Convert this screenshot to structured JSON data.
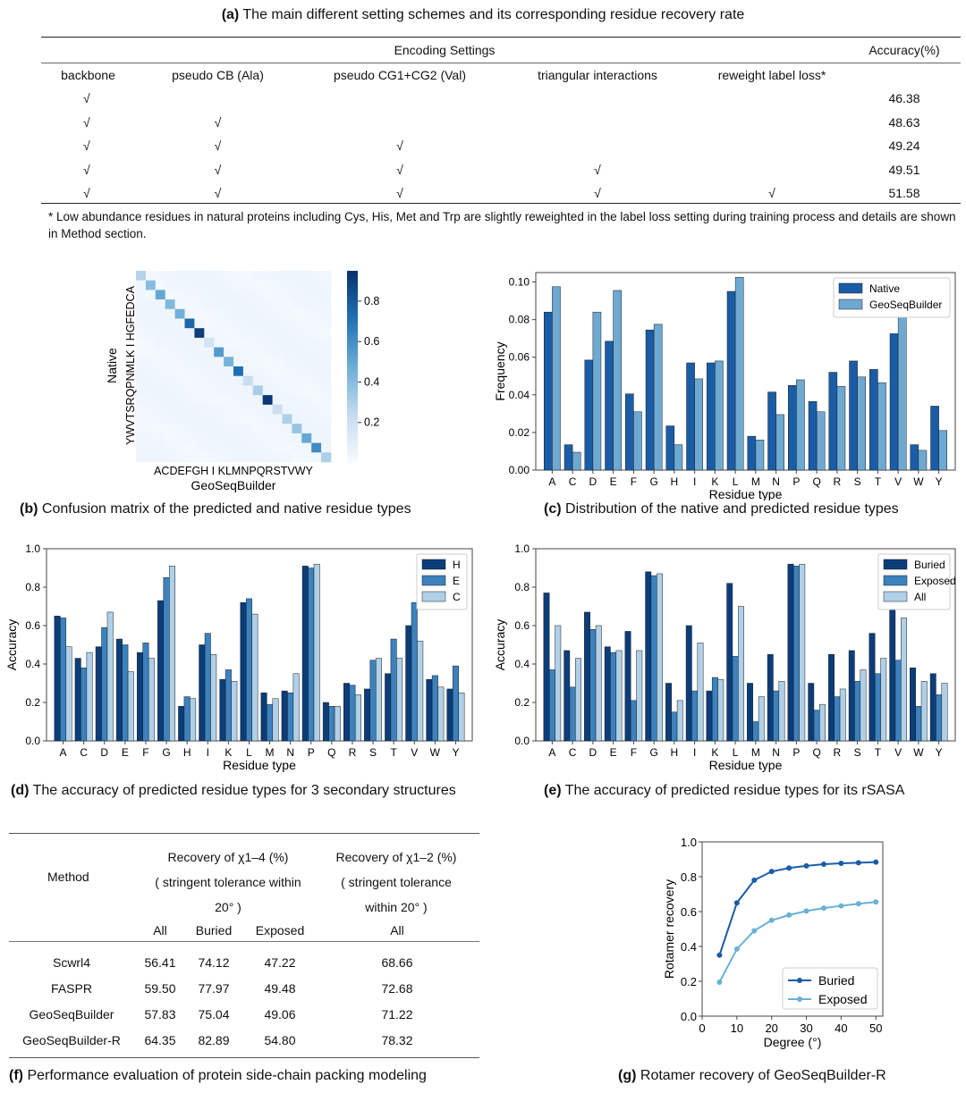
{
  "panel_a": {
    "caption_letter": "(a)",
    "caption_text": "The main different setting schemes and its corresponding residue recovery rate",
    "group_header": "Encoding Settings",
    "acc_header": "Accuracy(%)",
    "columns": [
      "backbone",
      "pseudo CB (Ala)",
      "pseudo CG1+CG2 (Val)",
      "triangular interactions",
      "reweight label loss*"
    ],
    "check": "√",
    "rows": [
      {
        "marks": [
          1,
          0,
          0,
          0,
          0
        ],
        "acc": "46.38"
      },
      {
        "marks": [
          1,
          1,
          0,
          0,
          0
        ],
        "acc": "48.63"
      },
      {
        "marks": [
          1,
          1,
          1,
          0,
          0
        ],
        "acc": "49.24"
      },
      {
        "marks": [
          1,
          1,
          1,
          1,
          0
        ],
        "acc": "49.51"
      },
      {
        "marks": [
          1,
          1,
          1,
          1,
          1
        ],
        "acc": "51.58"
      }
    ],
    "footnote": "* Low abundance residues in natural proteins including Cys, His, Met and Trp are slightly reweighted in the label loss setting during training process and details are shown in Method section."
  },
  "panel_b": {
    "caption_letter": "(b)",
    "caption_text": "Confusion matrix of the predicted and native residue types",
    "ylabel": "Native",
    "xlabel": "GeoSeqBuilder",
    "row_tick_text": "YWVTSRQPNMLK I HGFEDCA",
    "col_tick_text": "ACDEFGH I KLMNPQRSTVWY",
    "colorbar_ticks": [
      "0.2",
      "0.4",
      "0.6",
      "0.8"
    ],
    "cmap_low": "#f7fbff",
    "cmap_high": "#08306b"
  },
  "chart_data": [
    {
      "type": "heatmap",
      "id": "confusion",
      "rows": [
        "A",
        "C",
        "D",
        "E",
        "F",
        "G",
        "H",
        "I",
        "K",
        "L",
        "M",
        "N",
        "P",
        "Q",
        "R",
        "S",
        "T",
        "V",
        "W",
        "Y"
      ],
      "cols": [
        "A",
        "C",
        "D",
        "E",
        "F",
        "G",
        "H",
        "I",
        "K",
        "L",
        "M",
        "N",
        "P",
        "Q",
        "R",
        "S",
        "T",
        "V",
        "W",
        "Y"
      ],
      "diagonal": [
        0.28,
        0.4,
        0.5,
        0.42,
        0.46,
        0.75,
        0.9,
        0.18,
        0.55,
        0.45,
        0.72,
        0.22,
        0.31,
        0.92,
        0.21,
        0.3,
        0.36,
        0.5,
        0.61,
        0.3
      ],
      "zlim": [
        0,
        0.95
      ]
    },
    {
      "type": "bar",
      "id": "distribution",
      "categories": [
        "A",
        "C",
        "D",
        "E",
        "F",
        "G",
        "H",
        "I",
        "K",
        "L",
        "M",
        "N",
        "P",
        "Q",
        "R",
        "S",
        "T",
        "V",
        "W",
        "Y"
      ],
      "series": [
        {
          "name": "Native",
          "color": "#1a5da6",
          "values": [
            0.084,
            0.0135,
            0.0585,
            0.0685,
            0.0405,
            0.0745,
            0.0235,
            0.057,
            0.057,
            0.095,
            0.018,
            0.0415,
            0.045,
            0.0365,
            0.052,
            0.058,
            0.0535,
            0.0725,
            0.0135,
            0.034
          ]
        },
        {
          "name": "GeoSeqBuilder",
          "color": "#6ea9d2",
          "values": [
            0.0975,
            0.0095,
            0.084,
            0.0955,
            0.031,
            0.0775,
            0.0135,
            0.0485,
            0.058,
            0.1025,
            0.016,
            0.0295,
            0.048,
            0.031,
            0.0445,
            0.0495,
            0.0465,
            0.0815,
            0.0105,
            0.021
          ]
        }
      ],
      "xlabel": "Residue type",
      "ylabel": "Frequency",
      "ylim": [
        0,
        0.105
      ],
      "yticks": [
        "0.00",
        "0.02",
        "0.04",
        "0.06",
        "0.08",
        "0.10"
      ],
      "legend": "top-right"
    },
    {
      "type": "bar",
      "id": "secondary",
      "categories": [
        "A",
        "C",
        "D",
        "E",
        "F",
        "G",
        "H",
        "I",
        "K",
        "L",
        "M",
        "N",
        "P",
        "Q",
        "R",
        "S",
        "T",
        "V",
        "W",
        "Y"
      ],
      "series": [
        {
          "name": "H",
          "color": "#0b3d7a",
          "values": [
            0.65,
            0.43,
            0.49,
            0.53,
            0.46,
            0.73,
            0.18,
            0.5,
            0.32,
            0.72,
            0.25,
            0.26,
            0.91,
            0.2,
            0.3,
            0.27,
            0.35,
            0.6,
            0.32,
            0.27
          ]
        },
        {
          "name": "E",
          "color": "#3b82bf",
          "values": [
            0.64,
            0.38,
            0.59,
            0.5,
            0.51,
            0.85,
            0.23,
            0.56,
            0.37,
            0.74,
            0.19,
            0.25,
            0.9,
            0.18,
            0.29,
            0.42,
            0.53,
            0.72,
            0.34,
            0.39
          ]
        },
        {
          "name": "C",
          "color": "#b0d0e8",
          "values": [
            0.49,
            0.46,
            0.67,
            0.36,
            0.43,
            0.91,
            0.22,
            0.45,
            0.31,
            0.66,
            0.22,
            0.35,
            0.92,
            0.18,
            0.24,
            0.43,
            0.43,
            0.52,
            0.28,
            0.25
          ]
        }
      ],
      "xlabel": "Residue type",
      "ylabel": "Accuracy",
      "ylim": [
        0,
        1.0
      ],
      "yticks": [
        "0.0",
        "0.2",
        "0.4",
        "0.6",
        "0.8",
        "1.0"
      ],
      "legend": "top-right"
    },
    {
      "type": "bar",
      "id": "rsasa",
      "categories": [
        "A",
        "C",
        "D",
        "E",
        "F",
        "G",
        "H",
        "I",
        "K",
        "L",
        "M",
        "N",
        "P",
        "Q",
        "R",
        "S",
        "T",
        "V",
        "W",
        "Y"
      ],
      "series": [
        {
          "name": "Buried",
          "color": "#0b3d7a",
          "values": [
            0.77,
            0.47,
            0.67,
            0.49,
            0.57,
            0.88,
            0.3,
            0.6,
            0.26,
            0.82,
            0.3,
            0.45,
            0.92,
            0.3,
            0.45,
            0.47,
            0.56,
            0.74,
            0.38,
            0.35
          ]
        },
        {
          "name": "Exposed",
          "color": "#3b82bf",
          "values": [
            0.37,
            0.28,
            0.58,
            0.46,
            0.21,
            0.86,
            0.15,
            0.26,
            0.33,
            0.44,
            0.1,
            0.26,
            0.91,
            0.16,
            0.23,
            0.31,
            0.35,
            0.42,
            0.18,
            0.24
          ]
        },
        {
          "name": "All",
          "color": "#b0d0e8",
          "values": [
            0.6,
            0.43,
            0.6,
            0.47,
            0.47,
            0.87,
            0.21,
            0.51,
            0.32,
            0.7,
            0.23,
            0.31,
            0.92,
            0.19,
            0.27,
            0.37,
            0.43,
            0.64,
            0.31,
            0.3
          ]
        }
      ],
      "xlabel": "Residue type",
      "ylabel": "Accuracy",
      "ylim": [
        0,
        1.0
      ],
      "yticks": [
        "0.0",
        "0.2",
        "0.4",
        "0.6",
        "0.8",
        "1.0"
      ],
      "legend": "top-right"
    },
    {
      "type": "line",
      "id": "rotamer",
      "x": [
        5,
        10,
        15,
        20,
        25,
        30,
        35,
        40,
        45,
        50
      ],
      "series": [
        {
          "name": "Buried",
          "color": "#1a5da6",
          "values": [
            0.35,
            0.65,
            0.78,
            0.83,
            0.85,
            0.862,
            0.872,
            0.877,
            0.88,
            0.884
          ]
        },
        {
          "name": "Exposed",
          "color": "#6bb0d6",
          "values": [
            0.195,
            0.385,
            0.49,
            0.55,
            0.58,
            0.603,
            0.62,
            0.633,
            0.645,
            0.655
          ]
        }
      ],
      "xlabel": "Degree (°)",
      "ylabel": "Rotamer recovery",
      "xlim": [
        0,
        52
      ],
      "ylim": [
        0,
        1.0
      ],
      "xticks": [
        "0",
        "10",
        "20",
        "30",
        "40",
        "50"
      ],
      "yticks": [
        "0.0",
        "0.2",
        "0.4",
        "0.6",
        "0.8",
        "1.0"
      ],
      "legend": "bottom-right"
    }
  ],
  "panel_c": {
    "caption_letter": "(c)",
    "caption_text": "Distribution of the native and predicted residue types"
  },
  "panel_d": {
    "caption_letter": "(d)",
    "caption_text": "The accuracy of predicted residue types for 3 secondary structures"
  },
  "panel_e": {
    "caption_letter": "(e)",
    "caption_text": "The accuracy of  predicted  residue types for its rSASA"
  },
  "panel_f": {
    "caption_letter": "(f)",
    "caption_text": "Performance evaluation of protein side-chain packing modeling",
    "method_header": "Method",
    "h14_line1": "Recovery of χ1–4 (%)",
    "h14_line2": "( stringent tolerance within",
    "h14_line3": "20° )",
    "h12_line1": "Recovery of χ1–2 (%)",
    "h12_line2": "( stringent tolerance",
    "h12_line3": "within 20° )",
    "sub_all": "All",
    "sub_buried": "Buried",
    "sub_exposed": "Exposed",
    "sub_all2": "All",
    "rows": [
      {
        "method": "Scwrl4",
        "all": "56.41",
        "buried": "74.12",
        "exposed": "47.22",
        "all2": "68.66"
      },
      {
        "method": "FASPR",
        "all": "59.50",
        "buried": "77.97",
        "exposed": "49.48",
        "all2": "72.68"
      },
      {
        "method": "GeoSeqBuilder",
        "all": "57.83",
        "buried": "75.04",
        "exposed": "49.06",
        "all2": "71.22"
      },
      {
        "method": "GeoSeqBuilder-R",
        "all": "64.35",
        "buried": "82.89",
        "exposed": "54.80",
        "all2": "78.32"
      }
    ]
  },
  "panel_g": {
    "caption_letter": "(g)",
    "caption_text": "Rotamer recovery of GeoSeqBuilder-R"
  }
}
